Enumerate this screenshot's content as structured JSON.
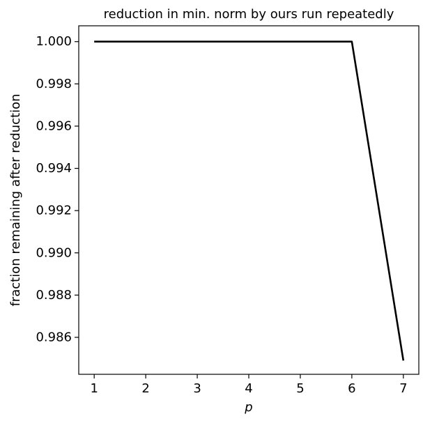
{
  "chart_data": {
    "type": "line",
    "title": "reduction in min. norm by ours run repeatedly",
    "xlabel": "p",
    "ylabel": "fraction remaining after reduction",
    "x": [
      1,
      2,
      3,
      4,
      5,
      6,
      7
    ],
    "series": [
      {
        "values": [
          1.0,
          1.0,
          1.0,
          1.0,
          1.0,
          1.0,
          0.9849
        ],
        "color": "#000000"
      }
    ],
    "xlim": [
      0.7,
      7.3
    ],
    "ylim": [
      0.98425,
      1.00075
    ],
    "xticks": [
      1,
      2,
      3,
      4,
      5,
      6,
      7
    ],
    "xtick_labels": [
      "1",
      "2",
      "3",
      "4",
      "5",
      "6",
      "7"
    ],
    "yticks": [
      1.0,
      0.998,
      0.996,
      0.994,
      0.992,
      0.99,
      0.988,
      0.986
    ],
    "ytick_labels": [
      "1.000",
      "0.998",
      "0.996",
      "0.994",
      "0.992",
      "0.990",
      "0.988",
      "0.986"
    ],
    "grid": false,
    "legend": false
  }
}
